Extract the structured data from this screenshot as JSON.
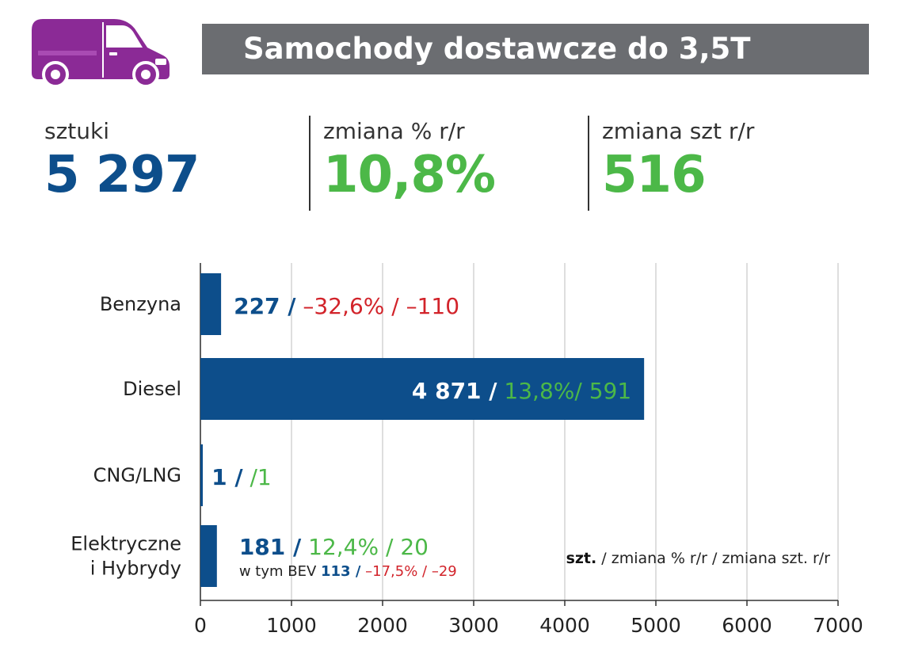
{
  "title": "Samochody dostawcze do 3,5T",
  "icon": "van-icon",
  "colors": {
    "blue": "#0d4e8b",
    "green": "#4cb848",
    "red": "#d2232a",
    "purple": "#8b2a96",
    "title_bg": "#6b6d71"
  },
  "kpis": [
    {
      "label": "sztuki",
      "value": "5 297"
    },
    {
      "label": "zmiana % r/r",
      "value": "10,8%"
    },
    {
      "label": "zmiana szt r/r",
      "value": "516"
    }
  ],
  "chart_data": {
    "type": "bar",
    "orientation": "horizontal",
    "categories": [
      "Benzyna",
      "Diesel",
      "CNG/LNG",
      "Elektryczne\ni Hybrydy"
    ],
    "values": [
      227,
      4871,
      1,
      181
    ],
    "xlim": [
      0,
      7000
    ],
    "xticks": [
      "0",
      "1000",
      "2000",
      "3000",
      "4000",
      "5000",
      "6000",
      "7000"
    ],
    "grid": true,
    "labels": [
      {
        "count": "227 /",
        "pct": " –32,6% / –110",
        "pct_color": "red"
      },
      {
        "count": "4 871 /",
        "pct": " 13,8%/ 591",
        "pct_color": "green"
      },
      {
        "count": "1 /",
        "pct": "/1",
        "pct_color": "green"
      },
      {
        "count": "181 /",
        "pct": " 12,4% / 20",
        "pct_color": "green"
      }
    ],
    "bev_note": {
      "prefix": "w tym BEV ",
      "count": "113 /",
      "rest": " –17,5% / –29"
    },
    "legend": {
      "bold": "szt.",
      "rest": " / zmiana % r/r / zmiana szt. r/r"
    }
  }
}
